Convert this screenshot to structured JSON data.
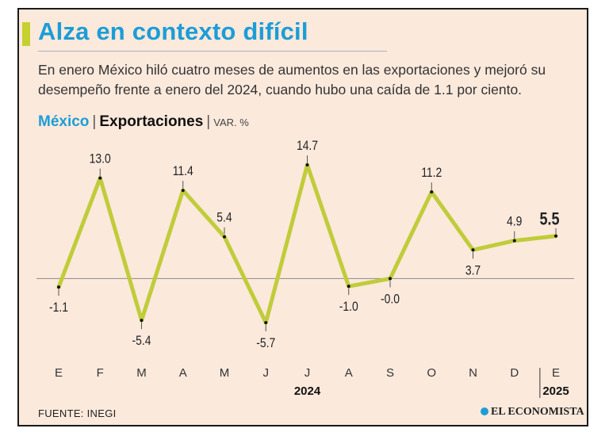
{
  "header": {
    "title": "Alza en contexto difícil",
    "subtitle": "En enero México hiló cuatro meses de aumentos en las exportaciones y mejoró su desempeño frente a enero del 2024, cuando hubo una caída de 1.1 por ciento."
  },
  "chart_header": {
    "country": "México",
    "separator": "|",
    "indicator": "Exportaciones",
    "unit": "VAR. %"
  },
  "chart_data": {
    "type": "line",
    "categories": [
      "E",
      "F",
      "M",
      "A",
      "M",
      "J",
      "J",
      "A",
      "S",
      "O",
      "N",
      "D",
      "E"
    ],
    "values": [
      -1.1,
      13.0,
      -5.4,
      11.4,
      5.4,
      -5.7,
      14.7,
      -1.0,
      -0.0,
      11.2,
      3.7,
      4.9,
      5.5
    ],
    "value_labels": [
      "-1.1",
      "13.0",
      "-5.4",
      "11.4",
      "5.4",
      "-5.7",
      "14.7",
      "-1.0",
      "-0.0",
      "11.2",
      "3.7",
      "4.9",
      "5.5"
    ],
    "year_labels": [
      {
        "label": "2024",
        "index": 6
      },
      {
        "label": "2025",
        "index": 12
      }
    ],
    "ylim": [
      -5.7,
      14.7
    ],
    "zero_line": true,
    "grid": false,
    "line_color": "#c0cc3a",
    "highlight_last": true
  },
  "footer": {
    "source": "FUENTE: INEGI",
    "brand": "EL ECONOMISTA"
  },
  "colors": {
    "accent_blue": "#1c9dd6",
    "accent_green": "#c5d12f",
    "background": "#fbe9dc"
  }
}
